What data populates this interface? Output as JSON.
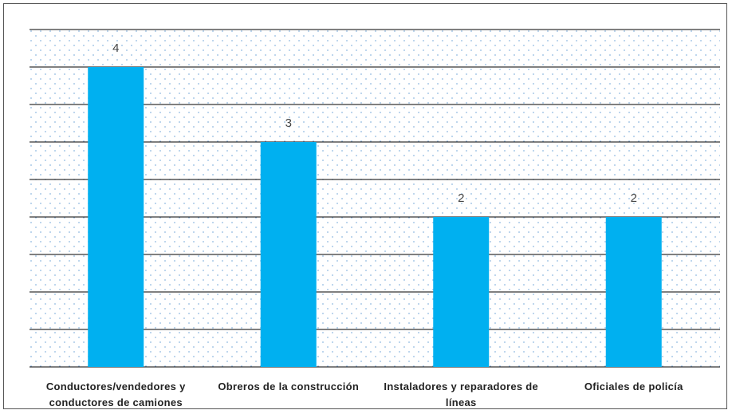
{
  "chart_data": {
    "type": "bar",
    "categories": [
      "Conductores/vendedores y conductores de camiones",
      "Obreros de la construcción",
      "Instaladores y reparadores de líneas",
      "Oficiales de policía"
    ],
    "values": [
      4,
      3,
      2,
      2
    ],
    "color": "#00b0f0",
    "ylim": [
      0,
      4.5
    ],
    "yticks": [
      0,
      0.5,
      1,
      1.5,
      2,
      2.5,
      3,
      3.5,
      4,
      4.5
    ],
    "grid": true
  }
}
